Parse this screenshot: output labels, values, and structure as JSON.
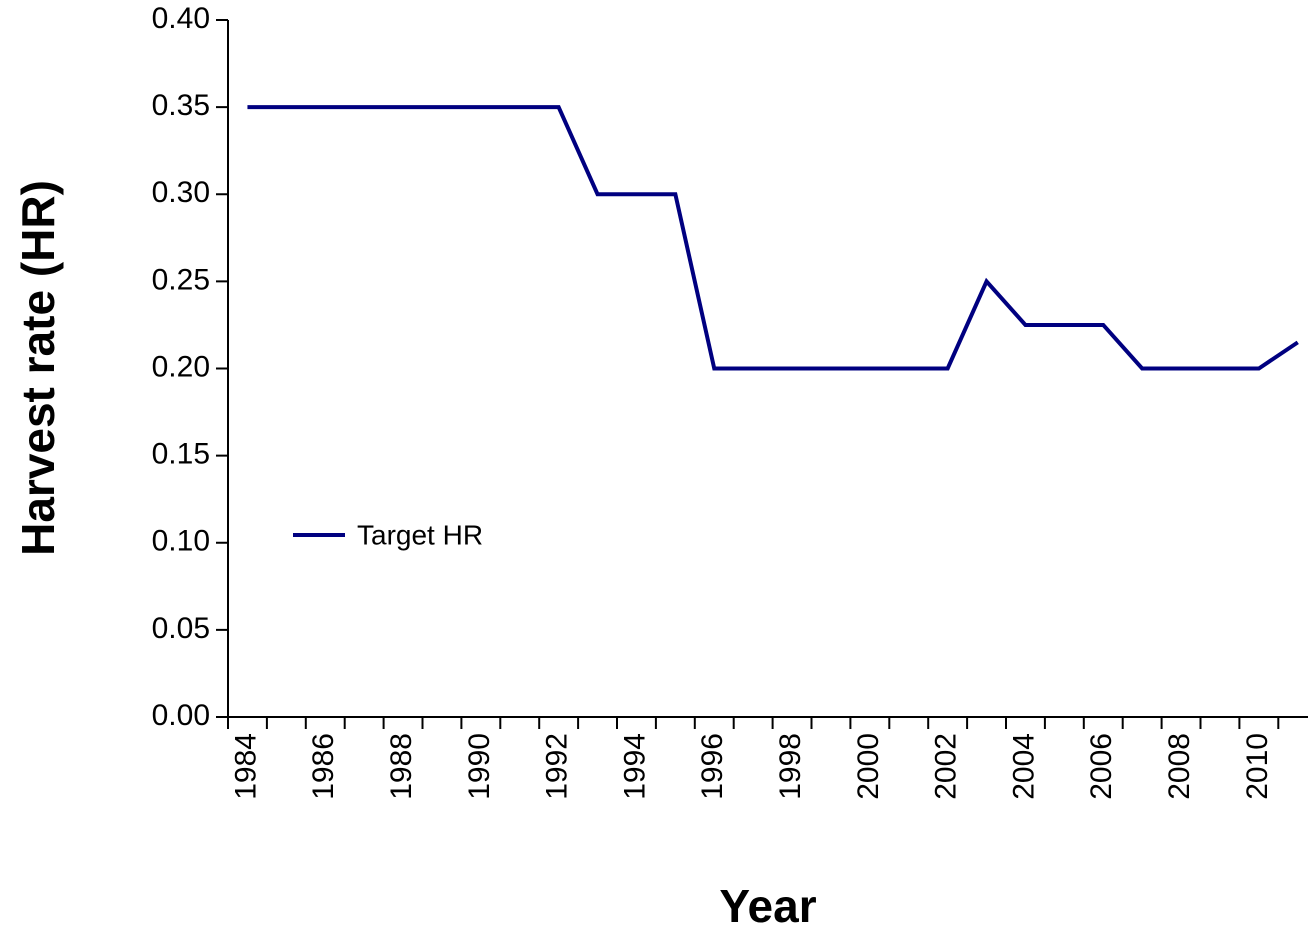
{
  "chart_data": {
    "type": "line",
    "x_label": "Year",
    "y_label": "Harvest rate (HR)",
    "categories": [
      "1984",
      null,
      "1986",
      null,
      "1988",
      null,
      "1990",
      null,
      "1992",
      null,
      "1994",
      null,
      "1996",
      null,
      "1998",
      null,
      "2000",
      null,
      "2002",
      null,
      "2004",
      null,
      "2006",
      null,
      "2008",
      null,
      "2010",
      null
    ],
    "series": [
      {
        "name": "Target HR",
        "color": "#000080",
        "values": [
          0.35,
          0.35,
          0.35,
          0.35,
          0.35,
          0.35,
          0.35,
          0.35,
          0.35,
          0.3,
          0.3,
          0.3,
          0.2,
          0.2,
          0.2,
          0.2,
          0.2,
          0.2,
          0.2,
          0.25,
          0.225,
          0.225,
          0.225,
          0.2,
          0.2,
          0.2,
          0.2,
          0.215
        ]
      }
    ],
    "ylim": [
      0,
      0.4
    ],
    "yticks": [
      {
        "value": 0,
        "label": "0.00"
      },
      {
        "value": 0.05,
        "label": "0.05"
      },
      {
        "value": 0.1,
        "label": "0.10"
      },
      {
        "value": 0.15,
        "label": "0.15"
      },
      {
        "value": 0.2,
        "label": "0.20"
      },
      {
        "value": 0.25,
        "label": "0.25"
      },
      {
        "value": 0.3,
        "label": "0.30"
      },
      {
        "value": 0.35,
        "label": "0.35"
      },
      {
        "value": 0.4,
        "label": "0.40"
      }
    ],
    "grid": false,
    "legend_position": "left"
  }
}
